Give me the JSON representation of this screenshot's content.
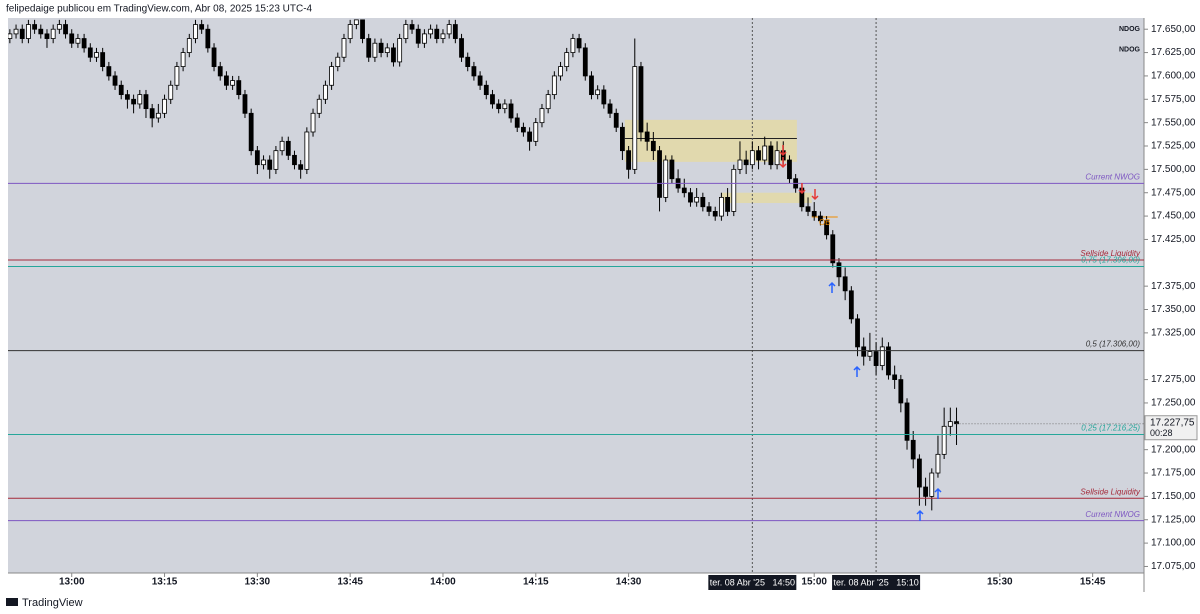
{
  "chart_data": {
    "type": "candlestick",
    "header": "felipedaige publicou em TradingView.com, Abr 08, 2025 15:23 UTC-4",
    "footer": "TradingView",
    "xlim": [
      769.7,
      953.3
    ],
    "ylim": [
      17068,
      17662
    ],
    "xticks": [
      {
        "value": 780,
        "label": "13:00"
      },
      {
        "value": 795,
        "label": "13:15"
      },
      {
        "value": 810,
        "label": "13:30"
      },
      {
        "value": 825,
        "label": "13:45"
      },
      {
        "value": 840,
        "label": "14:00"
      },
      {
        "value": 855,
        "label": "14:15"
      },
      {
        "value": 870,
        "label": "14:30"
      },
      {
        "value": 900,
        "label": "15:00"
      },
      {
        "value": 930,
        "label": "15:30"
      },
      {
        "value": 945,
        "label": "15:45"
      }
    ],
    "yticks": [
      {
        "value": 17075,
        "label": "17.075,00"
      },
      {
        "value": 17100,
        "label": "17.100,00"
      },
      {
        "value": 17125,
        "label": "17.125,00"
      },
      {
        "value": 17150,
        "label": "17.150,00"
      },
      {
        "value": 17175,
        "label": "17.175,00"
      },
      {
        "value": 17200,
        "label": "17.200,00"
      },
      {
        "value": 17250,
        "label": "17.250,00"
      },
      {
        "value": 17275,
        "label": "17.275,00"
      },
      {
        "value": 17325,
        "label": "17.325,00"
      },
      {
        "value": 17350,
        "label": "17.350,00"
      },
      {
        "value": 17375,
        "label": "17.375,00"
      },
      {
        "value": 17425,
        "label": "17.425,00"
      },
      {
        "value": 17450,
        "label": "17.450,00"
      },
      {
        "value": 17475,
        "label": "17.475,00"
      },
      {
        "value": 17500,
        "label": "17.500,00"
      },
      {
        "value": 17525,
        "label": "17.525,00"
      },
      {
        "value": 17550,
        "label": "17.550,00"
      },
      {
        "value": 17575,
        "label": "17.575,00"
      },
      {
        "value": 17600,
        "label": "17.600,00"
      },
      {
        "value": 17625,
        "label": "17.625,00"
      },
      {
        "value": 17650,
        "label": "17.650,00"
      }
    ],
    "crosshairs": [
      {
        "value": 890,
        "label": "ter. 08 Abr '25   14:50"
      },
      {
        "value": 910,
        "label": "ter. 08 Abr '25   15:10"
      }
    ],
    "last_price": {
      "value": 17227.75,
      "label": "17.227,75"
    },
    "countdown": "00:28",
    "up_color": "#ffffff",
    "down_color": "#000000",
    "levels": [
      {
        "label": "Current NWOG",
        "value": 17485,
        "color": "#7e57c2"
      },
      {
        "label": "Sellside Liquidity",
        "value": 17403,
        "color": "#a52a3a"
      },
      {
        "label": "0,75 (17.396,00)",
        "value": 17396,
        "color": "#26a69a"
      },
      {
        "label": "0,5 (17.306,00)",
        "value": 17306,
        "color": "#333333"
      },
      {
        "label": "0,25 (17.216,25)",
        "value": 17216.25,
        "color": "#26a69a"
      },
      {
        "label": "Sellside Liquidity",
        "value": 17148,
        "color": "#a52a3a"
      },
      {
        "label": "Current NWOG",
        "value": 17124,
        "color": "#7e57c2"
      }
    ],
    "tags": [
      {
        "label": "NDOG",
        "value": 17650
      },
      {
        "label": "NDOG",
        "value": 17628
      }
    ],
    "zones": [
      {
        "x": [
          869.4,
          897.2
        ],
        "y": [
          17508,
          17553
        ]
      },
      {
        "x": [
          885.1,
          899.6
        ],
        "y": [
          17464,
          17475
        ]
      }
    ],
    "segments": [
      {
        "x": [
          869.4,
          897.2
        ],
        "value": 17533
      }
    ],
    "ob": {
      "label": "OB",
      "x": [
        899.6,
        903.8
      ],
      "value": 17449
    },
    "x": [
      770,
      771,
      772,
      773,
      774,
      775,
      776,
      777,
      778,
      779,
      780,
      781,
      782,
      783,
      784,
      785,
      786,
      787,
      788,
      789,
      790,
      791,
      792,
      793,
      794,
      795,
      796,
      797,
      798,
      799,
      800,
      801,
      802,
      803,
      804,
      805,
      806,
      807,
      808,
      809,
      810,
      811,
      812,
      813,
      814,
      815,
      816,
      817,
      818,
      819,
      820,
      821,
      822,
      823,
      824,
      825,
      826,
      827,
      828,
      829,
      830,
      831,
      832,
      833,
      834,
      835,
      836,
      837,
      838,
      839,
      840,
      841,
      842,
      843,
      844,
      845,
      846,
      847,
      848,
      849,
      850,
      851,
      852,
      853,
      854,
      855,
      856,
      857,
      858,
      859,
      860,
      861,
      862,
      863,
      864,
      865,
      866,
      867,
      868,
      869,
      870,
      871,
      872,
      873,
      874,
      875,
      876,
      877,
      878,
      879,
      880,
      881,
      882,
      883,
      884,
      885,
      886,
      887,
      888,
      889,
      890,
      891,
      892,
      893,
      894,
      895,
      896,
      897,
      898,
      899,
      900,
      901,
      902,
      903,
      904,
      905,
      906,
      907,
      908,
      909,
      910,
      911,
      912,
      913,
      914,
      915,
      916,
      917,
      918,
      919,
      920,
      921,
      922,
      923
    ],
    "candles": [
      [
        17640,
        17650,
        17635,
        17645
      ],
      [
        17645,
        17655,
        17640,
        17650
      ],
      [
        17650,
        17655,
        17635,
        17640
      ],
      [
        17640,
        17660,
        17635,
        17655
      ],
      [
        17655,
        17660,
        17645,
        17650
      ],
      [
        17650,
        17655,
        17640,
        17645
      ],
      [
        17645,
        17650,
        17630,
        17640
      ],
      [
        17640,
        17655,
        17635,
        17650
      ],
      [
        17650,
        17660,
        17645,
        17655
      ],
      [
        17655,
        17660,
        17640,
        17645
      ],
      [
        17645,
        17650,
        17630,
        17635
      ],
      [
        17635,
        17645,
        17630,
        17640
      ],
      [
        17640,
        17645,
        17625,
        17630
      ],
      [
        17630,
        17635,
        17615,
        17620
      ],
      [
        17620,
        17630,
        17615,
        17625
      ],
      [
        17625,
        17630,
        17605,
        17610
      ],
      [
        17610,
        17615,
        17595,
        17600
      ],
      [
        17600,
        17605,
        17585,
        17590
      ],
      [
        17590,
        17595,
        17575,
        17580
      ],
      [
        17580,
        17585,
        17565,
        17575
      ],
      [
        17575,
        17580,
        17560,
        17570
      ],
      [
        17570,
        17585,
        17565,
        17580
      ],
      [
        17580,
        17585,
        17555,
        17565
      ],
      [
        17565,
        17570,
        17545,
        17555
      ],
      [
        17555,
        17570,
        17550,
        17560
      ],
      [
        17560,
        17580,
        17555,
        17575
      ],
      [
        17575,
        17595,
        17570,
        17590
      ],
      [
        17590,
        17615,
        17585,
        17610
      ],
      [
        17610,
        17630,
        17605,
        17625
      ],
      [
        17625,
        17645,
        17620,
        17640
      ],
      [
        17640,
        17660,
        17635,
        17655
      ],
      [
        17655,
        17660,
        17645,
        17650
      ],
      [
        17650,
        17655,
        17625,
        17630
      ],
      [
        17630,
        17635,
        17605,
        17610
      ],
      [
        17610,
        17615,
        17595,
        17600
      ],
      [
        17600,
        17605,
        17585,
        17590
      ],
      [
        17590,
        17600,
        17585,
        17595
      ],
      [
        17595,
        17600,
        17575,
        17580
      ],
      [
        17580,
        17585,
        17555,
        17560
      ],
      [
        17560,
        17565,
        17515,
        17520
      ],
      [
        17520,
        17525,
        17495,
        17505
      ],
      [
        17505,
        17515,
        17500,
        17510
      ],
      [
        17510,
        17515,
        17490,
        17500
      ],
      [
        17500,
        17525,
        17495,
        17520
      ],
      [
        17520,
        17535,
        17515,
        17530
      ],
      [
        17530,
        17535,
        17510,
        17515
      ],
      [
        17515,
        17520,
        17500,
        17505
      ],
      [
        17505,
        17510,
        17490,
        17500
      ],
      [
        17500,
        17545,
        17495,
        17540
      ],
      [
        17540,
        17565,
        17535,
        17560
      ],
      [
        17560,
        17580,
        17555,
        17575
      ],
      [
        17575,
        17595,
        17570,
        17590
      ],
      [
        17590,
        17615,
        17585,
        17610
      ],
      [
        17610,
        17625,
        17605,
        17620
      ],
      [
        17620,
        17645,
        17615,
        17640
      ],
      [
        17640,
        17660,
        17635,
        17655
      ],
      [
        17655,
        17660,
        17650,
        17660
      ],
      [
        17660,
        17660,
        17635,
        17640
      ],
      [
        17640,
        17645,
        17615,
        17620
      ],
      [
        17620,
        17640,
        17615,
        17635
      ],
      [
        17635,
        17640,
        17620,
        17625
      ],
      [
        17625,
        17635,
        17620,
        17630
      ],
      [
        17630,
        17635,
        17610,
        17615
      ],
      [
        17615,
        17645,
        17610,
        17640
      ],
      [
        17640,
        17660,
        17635,
        17655
      ],
      [
        17655,
        17660,
        17645,
        17650
      ],
      [
        17650,
        17655,
        17630,
        17635
      ],
      [
        17635,
        17650,
        17630,
        17645
      ],
      [
        17645,
        17655,
        17640,
        17650
      ],
      [
        17650,
        17655,
        17635,
        17640
      ],
      [
        17640,
        17650,
        17635,
        17645
      ],
      [
        17645,
        17660,
        17640,
        17655
      ],
      [
        17655,
        17660,
        17635,
        17640
      ],
      [
        17640,
        17645,
        17615,
        17620
      ],
      [
        17620,
        17625,
        17605,
        17610
      ],
      [
        17610,
        17615,
        17595,
        17600
      ],
      [
        17600,
        17605,
        17585,
        17590
      ],
      [
        17590,
        17595,
        17575,
        17580
      ],
      [
        17580,
        17585,
        17565,
        17570
      ],
      [
        17570,
        17575,
        17560,
        17565
      ],
      [
        17565,
        17575,
        17560,
        17570
      ],
      [
        17570,
        17575,
        17550,
        17555
      ],
      [
        17555,
        17560,
        17540,
        17545
      ],
      [
        17545,
        17550,
        17535,
        17540
      ],
      [
        17540,
        17545,
        17520,
        17530
      ],
      [
        17530,
        17555,
        17525,
        17550
      ],
      [
        17550,
        17570,
        17545,
        17565
      ],
      [
        17565,
        17585,
        17560,
        17580
      ],
      [
        17580,
        17605,
        17575,
        17600
      ],
      [
        17600,
        17615,
        17595,
        17610
      ],
      [
        17610,
        17630,
        17605,
        17625
      ],
      [
        17625,
        17645,
        17620,
        17640
      ],
      [
        17640,
        17645,
        17625,
        17630
      ],
      [
        17630,
        17635,
        17595,
        17600
      ],
      [
        17600,
        17605,
        17575,
        17580
      ],
      [
        17580,
        17590,
        17575,
        17585
      ],
      [
        17585,
        17590,
        17565,
        17570
      ],
      [
        17570,
        17575,
        17555,
        17560
      ],
      [
        17560,
        17565,
        17540,
        17545
      ],
      [
        17545,
        17550,
        17510,
        17520
      ],
      [
        17520,
        17525,
        17490,
        17500
      ],
      [
        17500,
        17640,
        17495,
        17610
      ],
      [
        17610,
        17615,
        17530,
        17540
      ],
      [
        17540,
        17550,
        17520,
        17530
      ],
      [
        17530,
        17540,
        17510,
        17520
      ],
      [
        17520,
        17525,
        17455,
        17470
      ],
      [
        17470,
        17515,
        17465,
        17510
      ],
      [
        17510,
        17515,
        17485,
        17490
      ],
      [
        17490,
        17500,
        17475,
        17480
      ],
      [
        17480,
        17490,
        17470,
        17475
      ],
      [
        17475,
        17480,
        17460,
        17465
      ],
      [
        17465,
        17480,
        17460,
        17470
      ],
      [
        17470,
        17475,
        17455,
        17460
      ],
      [
        17460,
        17465,
        17450,
        17455
      ],
      [
        17455,
        17460,
        17445,
        17450
      ],
      [
        17450,
        17475,
        17445,
        17470
      ],
      [
        17470,
        17480,
        17450,
        17455
      ],
      [
        17455,
        17505,
        17450,
        17500
      ],
      [
        17500,
        17530,
        17495,
        17510
      ],
      [
        17510,
        17520,
        17495,
        17505
      ],
      [
        17505,
        17530,
        17500,
        17520
      ],
      [
        17520,
        17525,
        17500,
        17510
      ],
      [
        17510,
        17535,
        17505,
        17525
      ],
      [
        17525,
        17530,
        17500,
        17505
      ],
      [
        17505,
        17530,
        17500,
        17520
      ],
      [
        17520,
        17530,
        17505,
        17510
      ],
      [
        17510,
        17515,
        17485,
        17490
      ],
      [
        17490,
        17495,
        17475,
        17480
      ],
      [
        17480,
        17485,
        17455,
        17460
      ],
      [
        17460,
        17470,
        17450,
        17455
      ],
      [
        17455,
        17465,
        17445,
        17450
      ],
      [
        17450,
        17455,
        17440,
        17445
      ],
      [
        17445,
        17450,
        17425,
        17430
      ],
      [
        17430,
        17435,
        17395,
        17400
      ],
      [
        17400,
        17405,
        17375,
        17385
      ],
      [
        17385,
        17395,
        17360,
        17370
      ],
      [
        17370,
        17375,
        17335,
        17340
      ],
      [
        17340,
        17345,
        17300,
        17310
      ],
      [
        17310,
        17320,
        17290,
        17300
      ],
      [
        17300,
        17325,
        17295,
        17305
      ],
      [
        17305,
        17315,
        17280,
        17290
      ],
      [
        17290,
        17320,
        17285,
        17310
      ],
      [
        17310,
        17315,
        17275,
        17280
      ],
      [
        17280,
        17290,
        17265,
        17275
      ],
      [
        17275,
        17280,
        17240,
        17250
      ],
      [
        17250,
        17255,
        17200,
        17210
      ],
      [
        17210,
        17220,
        17180,
        17190
      ],
      [
        17190,
        17195,
        17140,
        17160
      ],
      [
        17160,
        17170,
        17140,
        17150
      ],
      [
        17150,
        17180,
        17135,
        17175
      ],
      [
        17175,
        17215,
        17170,
        17195
      ],
      [
        17195,
        17245,
        17190,
        17225
      ],
      [
        17225,
        17245,
        17215,
        17230
      ],
      [
        17230,
        17245,
        17205,
        17227.75
      ]
    ]
  }
}
